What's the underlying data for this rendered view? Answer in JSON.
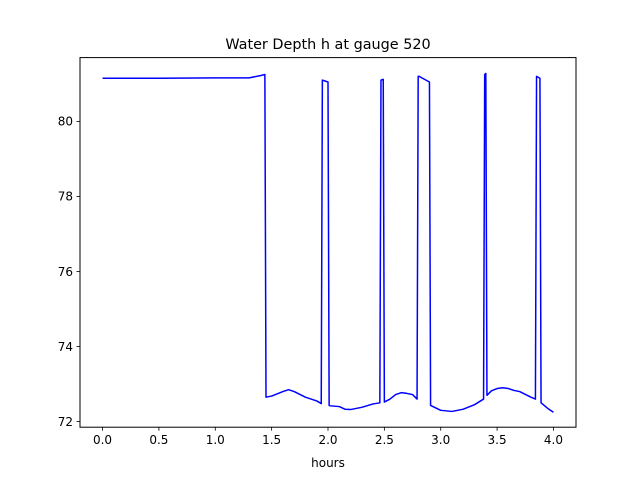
{
  "chart_data": {
    "type": "line",
    "title": "Water Depth h at gauge 520",
    "xlabel": "hours",
    "ylabel": "",
    "xlim": [
      -0.2,
      4.2
    ],
    "ylim": [
      71.85,
      81.7
    ],
    "xticks": [
      0.0,
      0.5,
      1.0,
      1.5,
      2.0,
      2.5,
      3.0,
      3.5,
      4.0
    ],
    "xtick_labels": [
      "0.0",
      "0.5",
      "1.0",
      "1.5",
      "2.0",
      "2.5",
      "3.0",
      "3.5",
      "4.0"
    ],
    "yticks": [
      72,
      74,
      76,
      78,
      80
    ],
    "ytick_labels": [
      "72",
      "74",
      "76",
      "78",
      "80"
    ],
    "grid": false,
    "legend": "none",
    "series": [
      {
        "color": "#0000ff",
        "x": [
          0.0,
          0.5,
          1.0,
          1.3,
          1.4,
          1.44,
          1.45,
          1.5,
          1.6,
          1.65,
          1.7,
          1.8,
          1.9,
          1.94,
          1.95,
          2.0,
          2.01,
          2.02,
          2.1,
          2.15,
          2.2,
          2.3,
          2.4,
          2.46,
          2.47,
          2.49,
          2.5,
          2.55,
          2.6,
          2.65,
          2.7,
          2.75,
          2.79,
          2.8,
          2.81,
          2.82,
          2.9,
          2.91,
          3.0,
          3.1,
          3.2,
          3.3,
          3.38,
          3.39,
          3.4,
          3.41,
          3.45,
          3.5,
          3.55,
          3.6,
          3.65,
          3.7,
          3.8,
          3.84,
          3.85,
          3.88,
          3.89,
          3.95,
          4.0
        ],
        "y": [
          81.15,
          81.15,
          81.16,
          81.16,
          81.22,
          81.25,
          72.65,
          72.68,
          72.8,
          72.85,
          72.8,
          72.65,
          72.55,
          72.48,
          81.1,
          81.05,
          72.43,
          72.42,
          72.4,
          72.33,
          72.32,
          72.38,
          72.47,
          72.5,
          81.1,
          81.12,
          72.52,
          72.6,
          72.72,
          72.77,
          72.75,
          72.72,
          72.6,
          81.2,
          81.2,
          81.18,
          81.05,
          72.43,
          72.3,
          72.27,
          72.33,
          72.45,
          72.6,
          81.25,
          81.28,
          72.7,
          72.82,
          72.88,
          72.9,
          72.88,
          72.83,
          72.8,
          72.65,
          72.6,
          81.2,
          81.15,
          72.5,
          72.35,
          72.25
        ]
      }
    ]
  }
}
